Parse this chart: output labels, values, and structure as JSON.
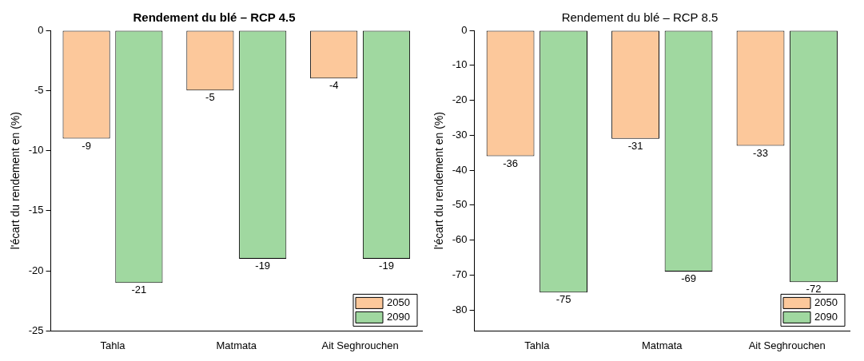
{
  "chart_data": [
    {
      "type": "bar",
      "title": "Rendement du blé – RCP 4.5",
      "ylabel": "l'écart du rendement en (%)",
      "categories": [
        "Tahla",
        "Matmata",
        "Ait Seghrouchen"
      ],
      "series": [
        {
          "name": "2050",
          "color": "#fcc89b",
          "values": [
            -9,
            -5,
            -4
          ]
        },
        {
          "name": "2090",
          "color": "#a0d8a0",
          "values": [
            -21,
            -19,
            -19
          ]
        }
      ],
      "ylim": [
        -25,
        0
      ],
      "yticks": [
        -25,
        -20,
        -15,
        -10,
        -5,
        0
      ],
      "data_labels": true,
      "legend": "bottom right",
      "grid": false
    },
    {
      "type": "bar",
      "title": "Rendement du blé – RCP 8.5",
      "ylabel": "l'écart du rendement en (%)",
      "categories": [
        "Tahla",
        "Matmata",
        "Ait Seghrouchen"
      ],
      "series": [
        {
          "name": "2050",
          "color": "#fcc89b",
          "values": [
            -36,
            -31,
            -33
          ]
        },
        {
          "name": "2090",
          "color": "#a0d8a0",
          "values": [
            -75,
            -69,
            -72
          ]
        }
      ],
      "ylim": [
        -86,
        0
      ],
      "yticks": [
        -80,
        -70,
        -60,
        -50,
        -40,
        -30,
        -20,
        -10,
        0
      ],
      "data_labels": true,
      "legend": "bottom right",
      "grid": false
    }
  ]
}
